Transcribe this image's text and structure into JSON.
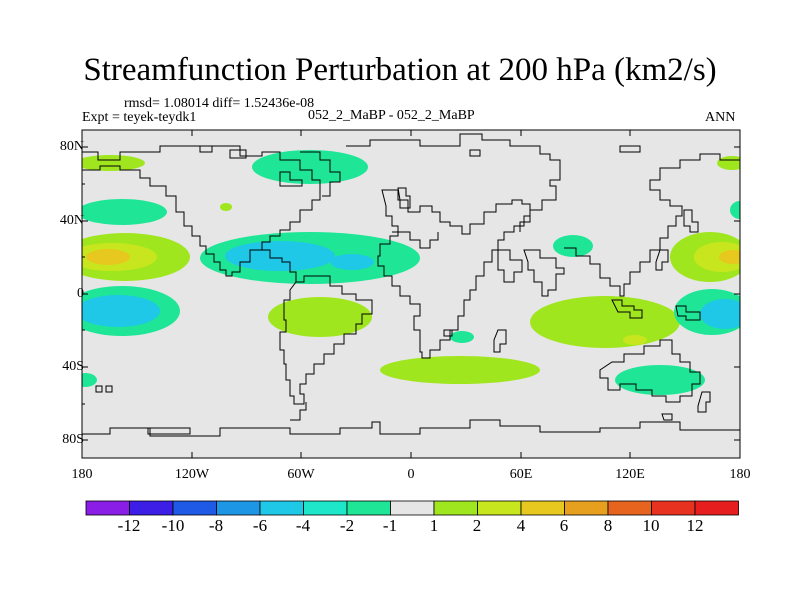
{
  "title": "Streamfunction Perturbation at 200 hPa (km2/s)",
  "stats_line": "rmsd= 1.08014 diff= 1.52436e-08",
  "left_label": "Expt = teyek-teydk1",
  "center_label": "052_2_MaBP - 052_2_MaBP",
  "right_label": "ANN",
  "lat_ticks": [
    "80N",
    "40N",
    "0",
    "40S",
    "80S"
  ],
  "lon_ticks": [
    "180",
    "120W",
    "60W",
    "0",
    "60E",
    "120E",
    "180"
  ],
  "colorbar": {
    "colors": [
      "#8a1ee6",
      "#3c1ee6",
      "#1e5ae6",
      "#1e96e6",
      "#1ec8e6",
      "#1ee6c8",
      "#1ee696",
      "#e6e6e6",
      "#a0e61e",
      "#c8e61e",
      "#e6c81e",
      "#e6a01e",
      "#e6641e",
      "#e6321e",
      "#e61e1e"
    ],
    "labels": [
      "-12",
      "-10",
      "-8",
      "-6",
      "-4",
      "-2",
      "-1",
      "1",
      "2",
      "4",
      "6",
      "8",
      "10",
      "12"
    ]
  },
  "anomaly_colors": {
    "ocean_background": "#e6e6e6",
    "neg_weak": "#1ee696",
    "neg_mid": "#1ee6c8",
    "neg_strong": "#1ec8e6",
    "pos_weak": "#a0e61e",
    "pos_mid": "#c8e61e",
    "pos_strong": "#e6c81e"
  }
}
